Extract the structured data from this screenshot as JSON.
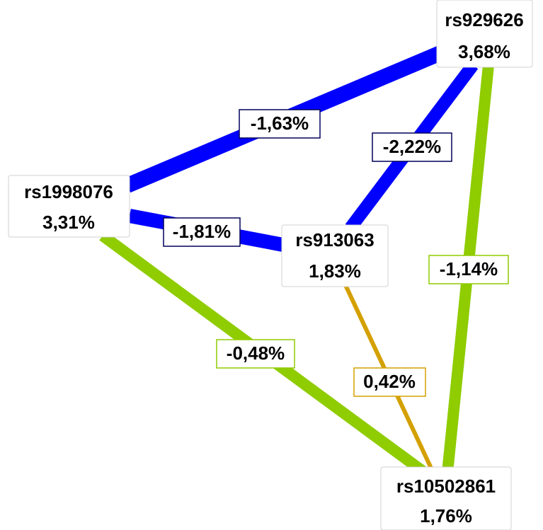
{
  "nodes": [
    {
      "name": "rs929626",
      "value": "3,68%"
    },
    {
      "name": "rs1998076",
      "value": "3,31%"
    },
    {
      "name": "rs913063",
      "value": "1,83%"
    },
    {
      "name": "rs10502861",
      "value": "1,76%"
    }
  ],
  "edges": [
    {
      "label": "-1,63%"
    },
    {
      "label": "-2,22%"
    },
    {
      "label": "-1,81%"
    },
    {
      "label": "-1,14%"
    },
    {
      "label": "-0,48%"
    },
    {
      "label": "0,42%"
    }
  ]
}
